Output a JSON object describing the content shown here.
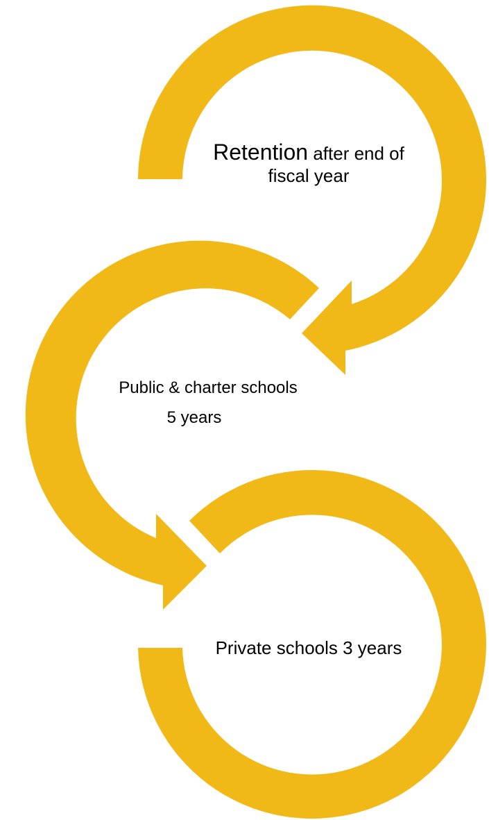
{
  "accent_color": "#F0B917",
  "steps": [
    {
      "emphasis": "Retention",
      "text": "after end of fiscal year"
    },
    {
      "line1": "Public & charter schools",
      "line2": "5 years"
    },
    {
      "text": "Private schools 3 years"
    }
  ]
}
